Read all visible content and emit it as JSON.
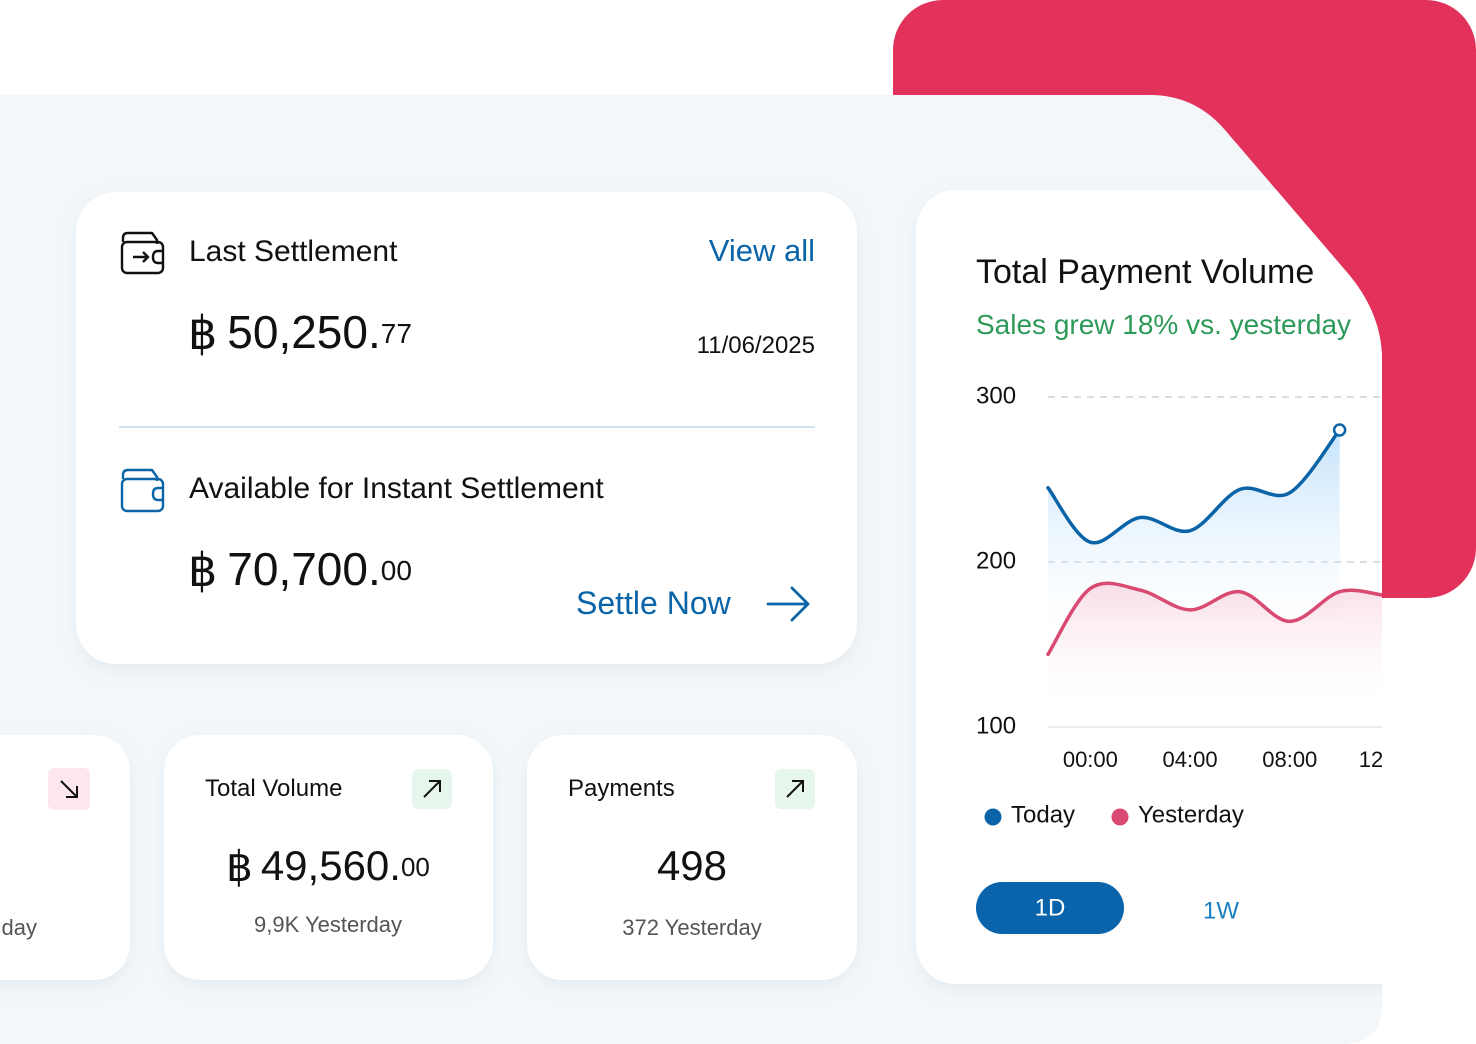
{
  "settlement": {
    "last": {
      "title": "Last Settlement",
      "link": "View all",
      "currency": "฿",
      "amount": "50,250.",
      "decimals": "77",
      "date": "11/06/2025"
    },
    "instant": {
      "title": "Available for Instant Settlement",
      "currency": "฿",
      "amount": "70,700.",
      "decimals": "00",
      "action": "Settle Now"
    }
  },
  "stats": [
    {
      "caption": "day"
    },
    {
      "title": "Total Volume",
      "currency": "฿",
      "amount": "49,560.",
      "decimals": "00",
      "caption": "9,9K Yesterday"
    },
    {
      "title": "Payments",
      "amount": "498",
      "caption": "372 Yesterday"
    }
  ],
  "range_buttons": [
    "1D",
    "1W"
  ],
  "chart_data": {
    "type": "line",
    "title": "Total Payment Volume",
    "subtitle": "Sales grew 18% vs. yesterday",
    "x": [
      -1.7,
      0,
      2,
      4,
      6,
      8,
      10,
      11.7
    ],
    "xlim": [
      -1.7,
      11.7
    ],
    "xticks": [
      {
        "value": 0,
        "label": "00:00"
      },
      {
        "value": 4,
        "label": "04:00"
      },
      {
        "value": 8,
        "label": "08:00"
      },
      {
        "value": 12,
        "label": "12"
      }
    ],
    "ylim": [
      100,
      300
    ],
    "yticks": [
      100,
      200,
      300
    ],
    "grid": true,
    "legend": "bottom-left",
    "series": [
      {
        "name": "Today",
        "color": "#0b64a8",
        "values": [
          245,
          212,
          227,
          219,
          244,
          242,
          280,
          null
        ]
      },
      {
        "name": "Yesterday",
        "color": "#d94a72",
        "values": [
          144,
          184,
          183,
          171,
          182,
          164,
          182,
          180
        ]
      }
    ]
  }
}
